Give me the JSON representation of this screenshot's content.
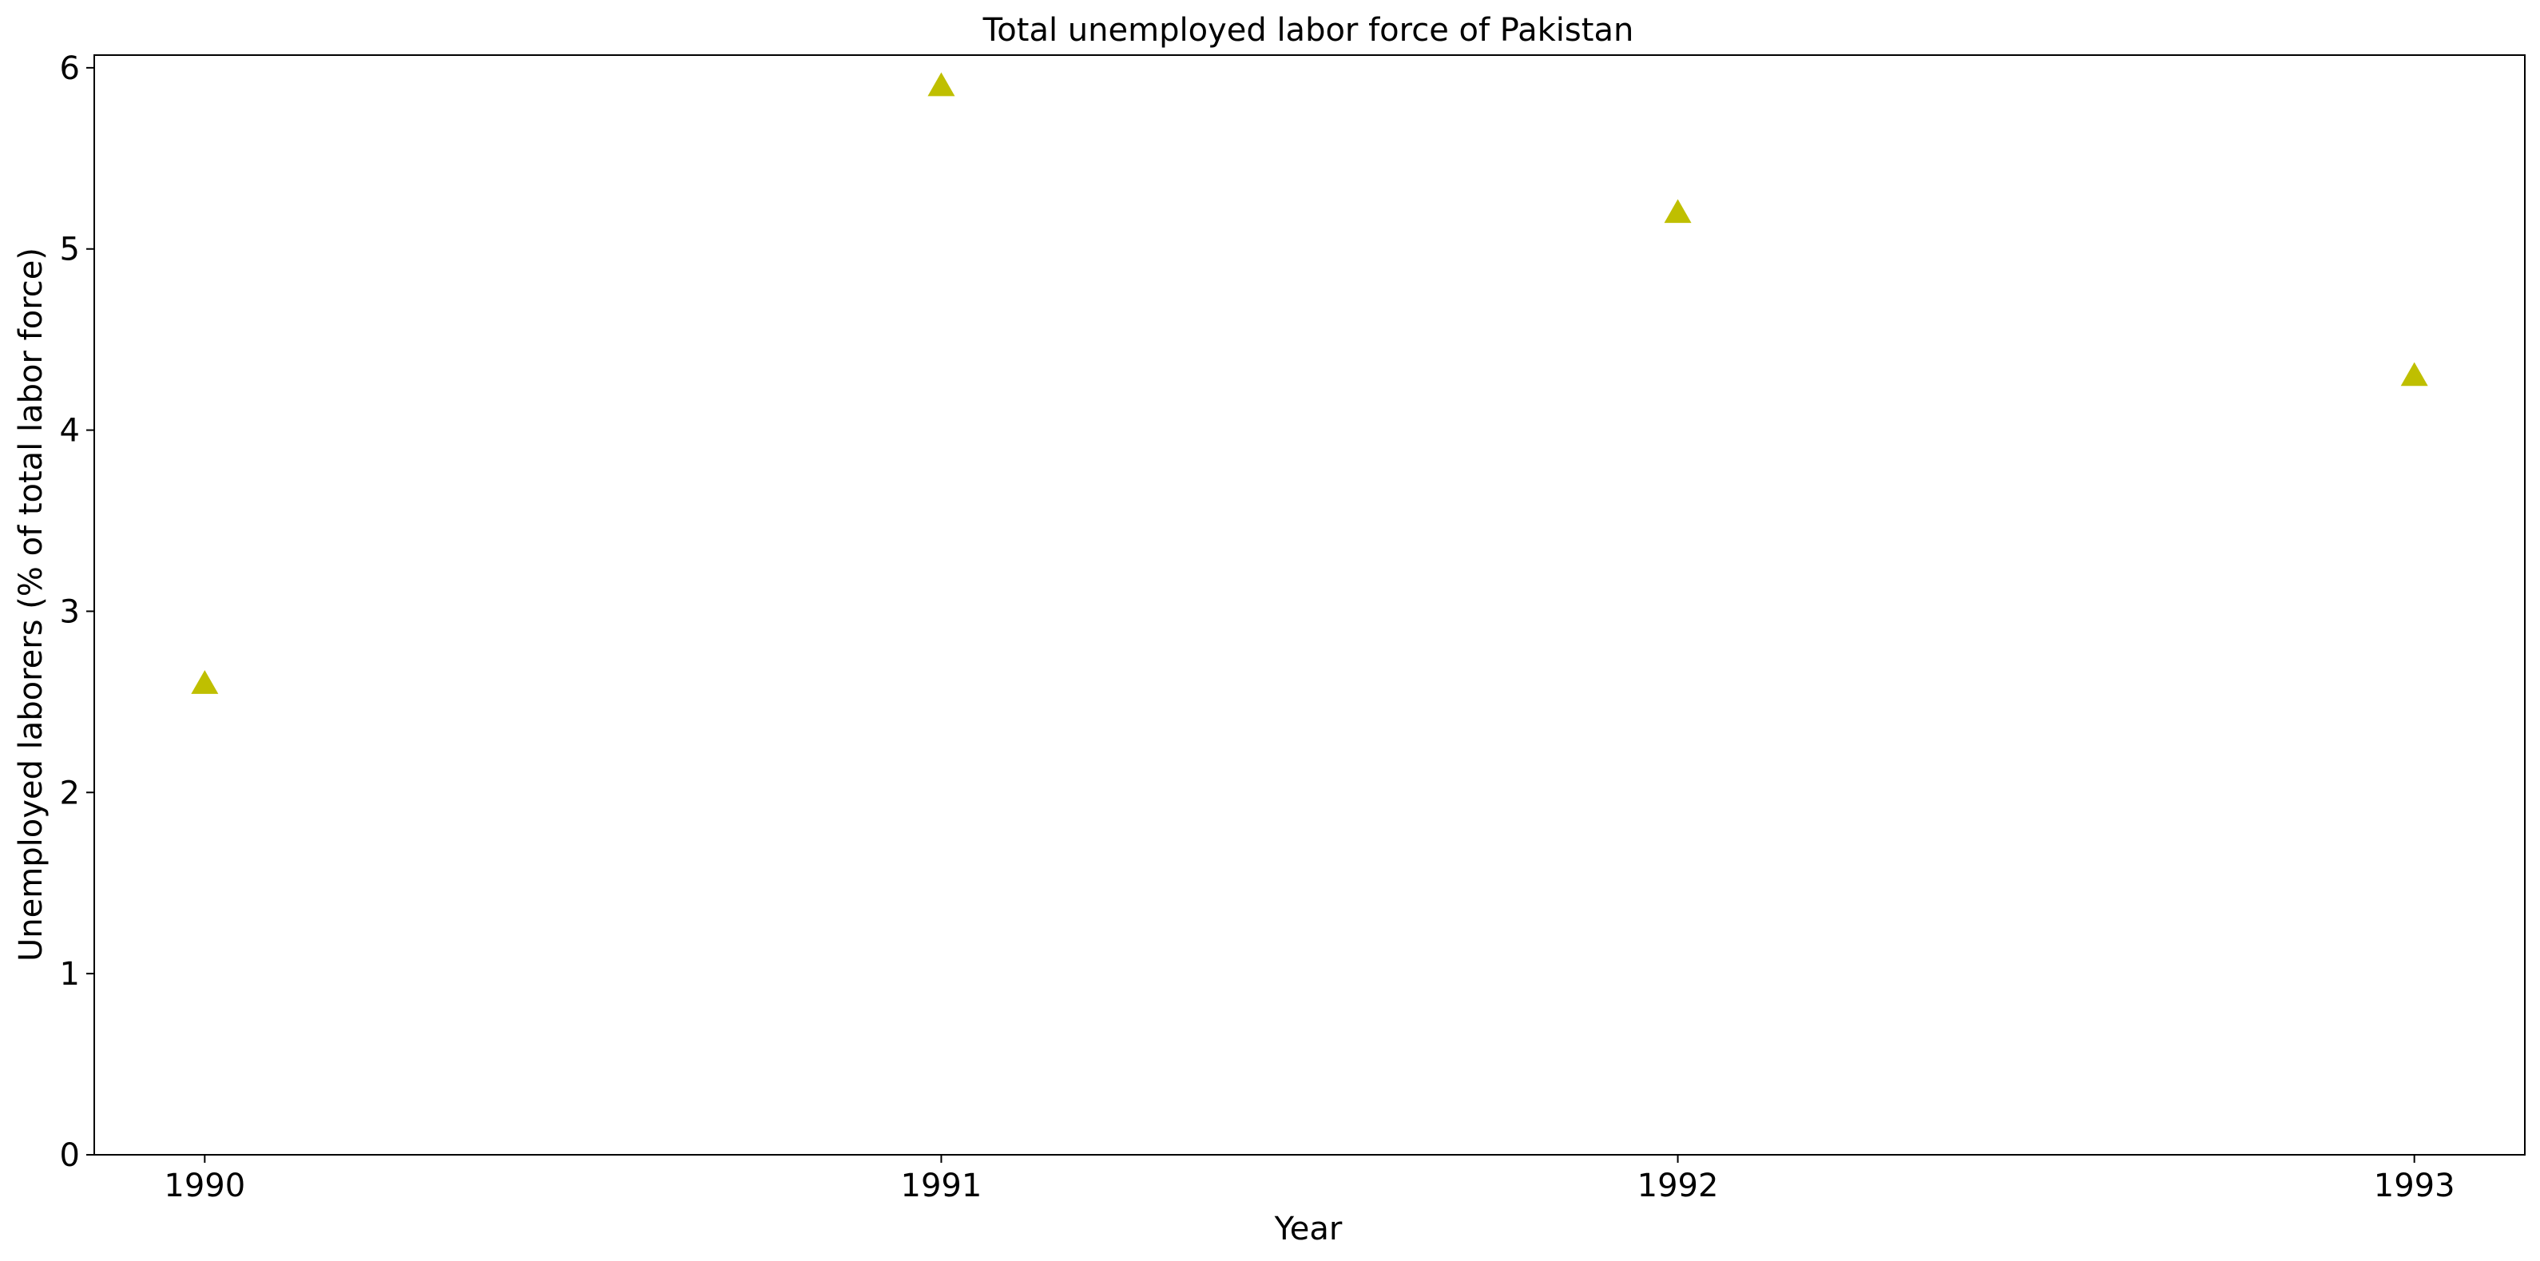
{
  "chart_data": {
    "type": "scatter",
    "title": "Total unemployed labor force of Pakistan",
    "xlabel": "Year",
    "ylabel": "Unemployed laborers (% of total labor force)",
    "x": [
      1990,
      1991,
      1992,
      1993
    ],
    "x_tick_labels": [
      "1990",
      "1991",
      "1992",
      "1993"
    ],
    "y_ticks": [
      0,
      1,
      2,
      3,
      4,
      5,
      6
    ],
    "y_tick_labels": [
      "0",
      "1",
      "2",
      "3",
      "4",
      "5",
      "6"
    ],
    "series": [
      {
        "values": [
          2.6,
          5.9,
          5.2,
          4.3
        ],
        "marker": "triangle",
        "color": "#bfbf00"
      }
    ],
    "xlim": [
      1989.85,
      1993.15
    ],
    "ylim": [
      0,
      6.07
    ],
    "grid": false,
    "legend": "none"
  }
}
